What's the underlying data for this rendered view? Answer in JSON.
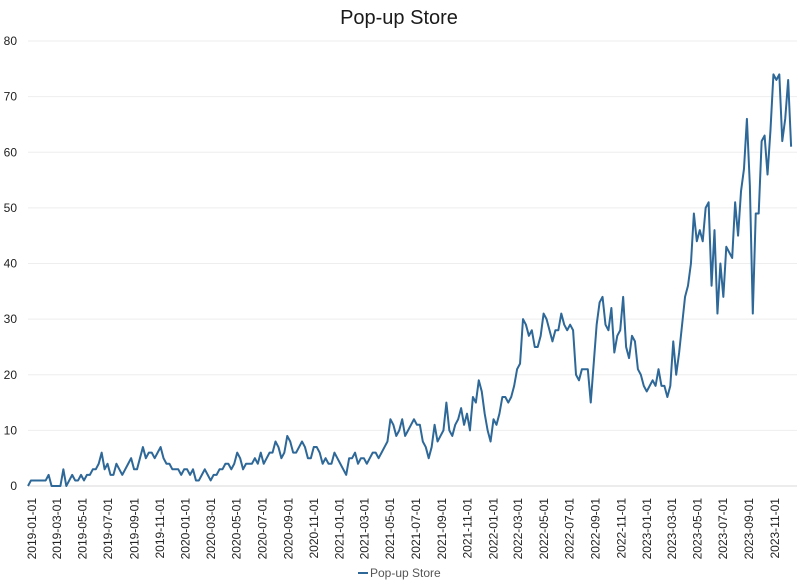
{
  "chart_data": {
    "type": "line",
    "title": "Pop-up Store",
    "xlabel": "",
    "ylabel": "",
    "ylim": [
      0,
      80
    ],
    "yticks": [
      0,
      10,
      20,
      30,
      40,
      50,
      60,
      70,
      80
    ],
    "x_start": "2018-12-30",
    "x_end": "2023-12-31",
    "x_step_days": 7,
    "xticks": [
      "2019-01-01",
      "2019-03-01",
      "2019-05-01",
      "2019-07-01",
      "2019-09-01",
      "2019-11-01",
      "2020-01-01",
      "2020-03-01",
      "2020-05-01",
      "2020-07-01",
      "2020-09-01",
      "2020-11-01",
      "2021-01-01",
      "2021-03-01",
      "2021-05-01",
      "2021-07-01",
      "2021-09-01",
      "2021-11-01",
      "2022-01-01",
      "2022-03-01",
      "2022-05-01",
      "2022-07-01",
      "2022-09-01",
      "2022-11-01",
      "2023-01-01",
      "2023-03-01",
      "2023-05-01",
      "2023-07-01",
      "2023-09-01",
      "2023-11-01"
    ],
    "legend": "bottom",
    "series": [
      {
        "name": "Pop-up Store",
        "color": "#2e6898",
        "values": [
          0,
          1,
          1,
          1,
          1,
          1,
          1,
          2,
          0,
          0,
          0,
          0,
          3,
          0,
          1,
          2,
          1,
          1,
          2,
          1,
          2,
          2,
          3,
          3,
          4,
          6,
          3,
          4,
          2,
          2,
          4,
          3,
          2,
          3,
          4,
          5,
          3,
          3,
          5,
          7,
          5,
          6,
          6,
          5,
          6,
          7,
          5,
          4,
          4,
          3,
          3,
          3,
          2,
          3,
          3,
          2,
          3,
          1,
          1,
          2,
          3,
          2,
          1,
          2,
          2,
          3,
          3,
          4,
          4,
          3,
          4,
          6,
          5,
          3,
          4,
          4,
          4,
          5,
          4,
          6,
          4,
          5,
          6,
          6,
          8,
          7,
          5,
          6,
          9,
          8,
          6,
          6,
          7,
          8,
          7,
          5,
          5,
          7,
          7,
          6,
          4,
          5,
          4,
          4,
          6,
          5,
          4,
          3,
          2,
          5,
          5,
          6,
          4,
          5,
          5,
          4,
          5,
          6,
          6,
          5,
          6,
          7,
          8,
          12,
          11,
          9,
          10,
          12,
          9,
          10,
          11,
          12,
          11,
          11,
          8,
          7,
          5,
          7,
          11,
          8,
          9,
          10,
          15,
          10,
          9,
          11,
          12,
          14,
          11,
          13,
          10,
          16,
          15,
          19,
          17,
          13,
          10,
          8,
          12,
          11,
          13,
          16,
          16,
          15,
          16,
          18,
          21,
          22,
          30,
          29,
          27,
          28,
          25,
          25,
          27,
          31,
          30,
          28,
          26,
          28,
          28,
          31,
          29,
          28,
          29,
          28,
          20,
          19,
          21,
          21,
          21,
          15,
          22,
          29,
          33,
          34,
          29,
          28,
          32,
          24,
          27,
          28,
          34,
          25,
          23,
          27,
          26,
          21,
          20,
          18,
          17,
          18,
          19,
          18,
          21,
          18,
          18,
          16,
          18,
          26,
          20,
          24,
          29,
          34,
          36,
          40,
          49,
          44,
          46,
          44,
          50,
          51,
          36,
          46,
          31,
          40,
          34,
          43,
          42,
          41,
          51,
          45,
          53,
          57,
          66,
          54,
          31,
          49,
          49,
          62,
          63,
          56,
          64,
          74,
          73,
          74,
          62,
          66,
          73,
          61
        ]
      }
    ]
  }
}
